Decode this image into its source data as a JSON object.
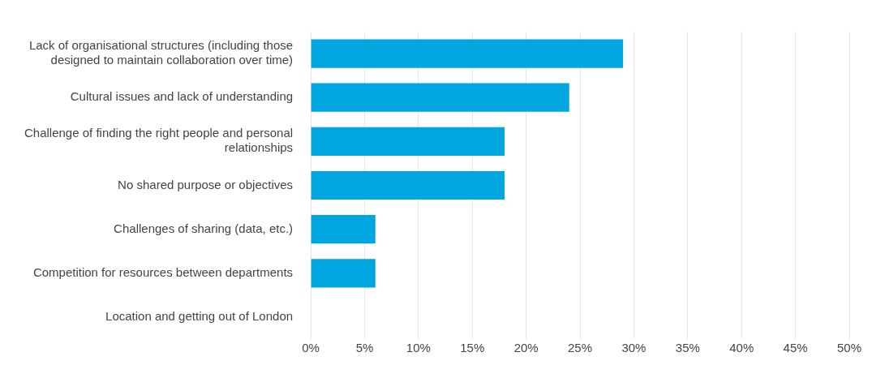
{
  "chart_data": {
    "type": "bar",
    "orientation": "horizontal",
    "categories": [
      "Lack of organisational structures (including those designed to maintain collaboration over time)",
      "Cultural issues and lack of understanding",
      "Challenge of finding the right people and personal relationships",
      "No shared purpose or objectives",
      "Challenges of sharing (data, etc.)",
      "Competition for resources between departments",
      "Location and getting out of London"
    ],
    "values": [
      29,
      24,
      18,
      18,
      6,
      6,
      0
    ],
    "color": "#00a6e0",
    "xlim": [
      0,
      50
    ],
    "xticks": [
      {
        "value": 0,
        "label": "0%"
      },
      {
        "value": 5,
        "label": "5%"
      },
      {
        "value": 10,
        "label": "10%"
      },
      {
        "value": 15,
        "label": "15%"
      },
      {
        "value": 20,
        "label": "20%"
      },
      {
        "value": 25,
        "label": "25%"
      },
      {
        "value": 30,
        "label": "30%"
      },
      {
        "value": 35,
        "label": "35%"
      },
      {
        "value": 40,
        "label": "40%"
      },
      {
        "value": 45,
        "label": "45%"
      },
      {
        "value": 50,
        "label": "50%"
      }
    ],
    "grid": "x",
    "legend": false
  }
}
